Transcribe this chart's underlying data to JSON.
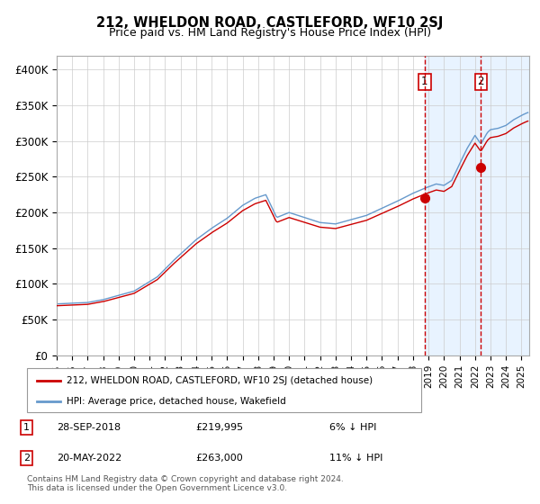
{
  "title": "212, WHELDON ROAD, CASTLEFORD, WF10 2SJ",
  "subtitle": "Price paid vs. HM Land Registry's House Price Index (HPI)",
  "legend_line1": "212, WHELDON ROAD, CASTLEFORD, WF10 2SJ (detached house)",
  "legend_line2": "HPI: Average price, detached house, Wakefield",
  "transaction1_date": "28-SEP-2018",
  "transaction1_price": 219995,
  "transaction1_pct": "6% ↓ HPI",
  "transaction2_date": "20-MAY-2022",
  "transaction2_price": 263000,
  "transaction2_pct": "11% ↓ HPI",
  "footer": "Contains HM Land Registry data © Crown copyright and database right 2024.\nThis data is licensed under the Open Government Licence v3.0.",
  "red_color": "#cc0000",
  "blue_color": "#6699cc",
  "background_shaded": "#ddeeff",
  "ylim": [
    0,
    420000
  ],
  "ytick_vals": [
    0,
    50000,
    100000,
    150000,
    200000,
    250000,
    300000,
    350000,
    400000
  ],
  "ytick_labels": [
    "£0",
    "£50K",
    "£100K",
    "£150K",
    "£200K",
    "£250K",
    "£300K",
    "£350K",
    "£400K"
  ],
  "xlim_start": 1995.0,
  "xlim_end": 2025.5,
  "transaction1_x": 2018.75,
  "transaction2_x": 2022.38,
  "hpi_anchors": [
    [
      1995.0,
      72000
    ],
    [
      1997.0,
      74000
    ],
    [
      1998.0,
      78000
    ],
    [
      2000.0,
      90000
    ],
    [
      2001.5,
      110000
    ],
    [
      2002.5,
      132000
    ],
    [
      2004.0,
      162000
    ],
    [
      2005.0,
      178000
    ],
    [
      2006.0,
      192000
    ],
    [
      2007.0,
      210000
    ],
    [
      2007.8,
      220000
    ],
    [
      2008.5,
      225000
    ],
    [
      2009.2,
      193000
    ],
    [
      2010.0,
      200000
    ],
    [
      2011.0,
      193000
    ],
    [
      2012.0,
      186000
    ],
    [
      2013.0,
      184000
    ],
    [
      2014.0,
      190000
    ],
    [
      2015.0,
      196000
    ],
    [
      2016.0,
      206000
    ],
    [
      2017.0,
      216000
    ],
    [
      2018.0,
      227000
    ],
    [
      2018.75,
      234000
    ],
    [
      2019.0,
      236000
    ],
    [
      2019.5,
      240000
    ],
    [
      2020.0,
      238000
    ],
    [
      2020.5,
      245000
    ],
    [
      2021.0,
      268000
    ],
    [
      2021.5,
      290000
    ],
    [
      2022.0,
      308000
    ],
    [
      2022.38,
      296000
    ],
    [
      2022.8,
      312000
    ],
    [
      2023.0,
      316000
    ],
    [
      2023.5,
      318000
    ],
    [
      2024.0,
      322000
    ],
    [
      2024.5,
      330000
    ],
    [
      2025.0,
      336000
    ],
    [
      2025.4,
      340000
    ]
  ]
}
